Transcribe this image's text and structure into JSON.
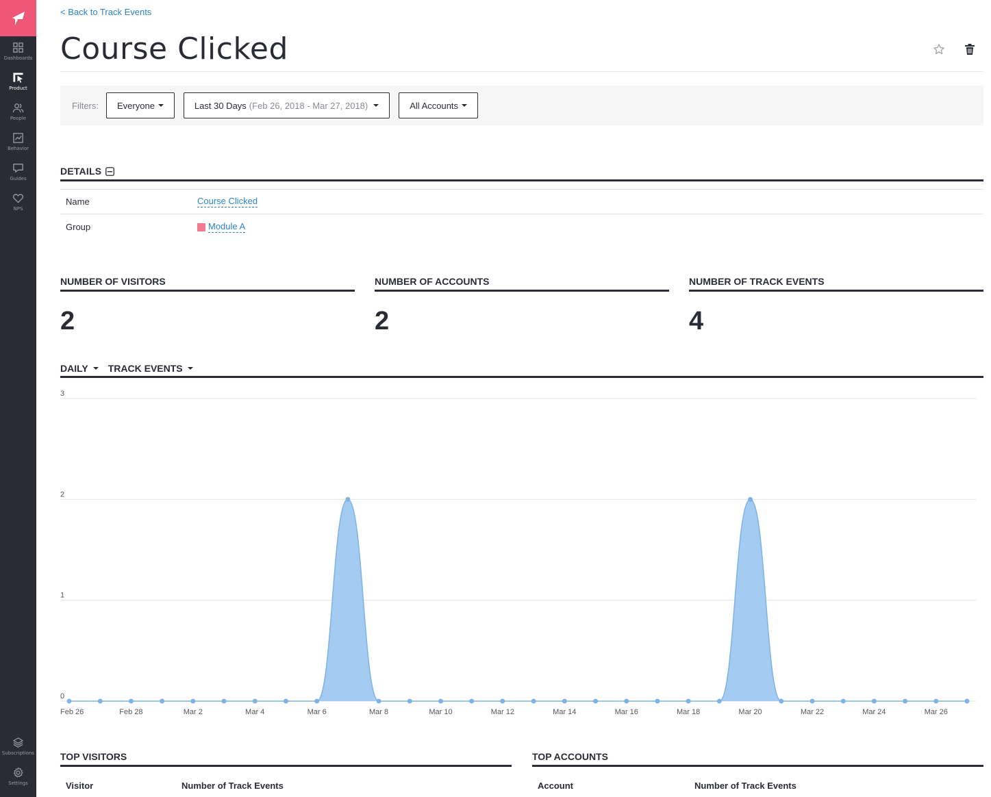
{
  "sidebar": {
    "items": [
      {
        "label": "Dashboards",
        "icon": "grid-icon",
        "active": false
      },
      {
        "label": "Product",
        "icon": "product-icon",
        "active": true
      },
      {
        "label": "People",
        "icon": "people-icon",
        "active": false
      },
      {
        "label": "Behavior",
        "icon": "behavior-icon",
        "active": false
      },
      {
        "label": "Guides",
        "icon": "guides-icon",
        "active": false
      },
      {
        "label": "NPS",
        "icon": "heart-icon",
        "active": false
      }
    ],
    "bottom": [
      {
        "label": "Subscriptions",
        "icon": "layers-icon"
      },
      {
        "label": "Settings",
        "icon": "gear-icon"
      }
    ]
  },
  "header": {
    "back_link": "< Back to Track Events",
    "title": "Course Clicked"
  },
  "filters": {
    "label": "Filters:",
    "segment": "Everyone",
    "date_range": "Last 30 Days",
    "date_detail": "(Feb 26, 2018 - Mar 27, 2018)",
    "accounts": "All Accounts"
  },
  "details": {
    "heading": "DETAILS",
    "rows": [
      {
        "key": "Name",
        "value": "Course Clicked"
      },
      {
        "key": "Group",
        "value": "Module A"
      }
    ],
    "group_color": "#f3798f"
  },
  "metrics": [
    {
      "label": "NUMBER OF VISITORS",
      "value": "2"
    },
    {
      "label": "NUMBER OF ACCOUNTS",
      "value": "2"
    },
    {
      "label": "NUMBER OF TRACK EVENTS",
      "value": "4"
    }
  ],
  "chart_controls": {
    "interval": "DAILY",
    "metric": "TRACK EVENTS"
  },
  "chart_data": {
    "type": "area",
    "x": [
      "Feb 26",
      "Feb 27",
      "Feb 28",
      "Mar 1",
      "Mar 2",
      "Mar 3",
      "Mar 4",
      "Mar 5",
      "Mar 6",
      "Mar 7",
      "Mar 8",
      "Mar 9",
      "Mar 10",
      "Mar 11",
      "Mar 12",
      "Mar 13",
      "Mar 14",
      "Mar 15",
      "Mar 16",
      "Mar 17",
      "Mar 18",
      "Mar 19",
      "Mar 20",
      "Mar 21",
      "Mar 22",
      "Mar 23",
      "Mar 24",
      "Mar 25",
      "Mar 26",
      "Mar 27"
    ],
    "tick_labels": [
      "Feb 26",
      "Feb 28",
      "Mar 2",
      "Mar 4",
      "Mar 6",
      "Mar 8",
      "Mar 10",
      "Mar 12",
      "Mar 14",
      "Mar 16",
      "Mar 18",
      "Mar 20",
      "Mar 22",
      "Mar 24",
      "Mar 26"
    ],
    "values": [
      0,
      0,
      0,
      0,
      0,
      0,
      0,
      0,
      0,
      2,
      0,
      0,
      0,
      0,
      0,
      0,
      0,
      0,
      0,
      0,
      0,
      0,
      2,
      0,
      0,
      0,
      0,
      0,
      0,
      0
    ],
    "y_ticks": [
      0,
      1,
      2,
      3
    ],
    "ylim": [
      0,
      3
    ],
    "grid": true,
    "color": "#7fb2e5",
    "fill": "#9fc8f0"
  },
  "top_visitors": {
    "heading": "TOP VISITORS",
    "columns": [
      "Visitor",
      "Number of Track Events"
    ]
  },
  "top_accounts": {
    "heading": "TOP ACCOUNTS",
    "columns": [
      "Account",
      "Number of Track Events"
    ]
  }
}
